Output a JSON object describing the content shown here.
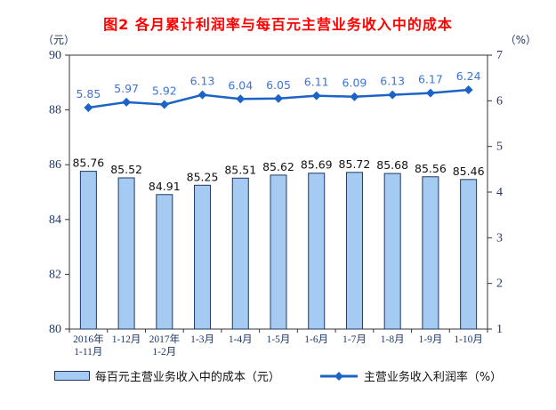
{
  "title": "图2 各月累计利润率与每百元主营业务收入中的成本",
  "left_axis_unit": "（元）",
  "right_axis_unit": "（%）",
  "colors": {
    "title": "#ff0000",
    "bar_fill": "#a6cbf3",
    "bar_border": "#1f3864",
    "line": "#1c63c8",
    "line_label": "#3e74d8",
    "bar_label": "#111111",
    "axis_text": "#1f3864",
    "axis_line": "#333333"
  },
  "chart_data": {
    "type": "bar+line combo, dual axis",
    "title": "图2 各月累计利润率与每百元主营业务收入中的成本",
    "categories": [
      [
        "2016年",
        "1-11月"
      ],
      [
        "1-12月"
      ],
      [
        "2017年",
        "1-2月"
      ],
      [
        "1-3月"
      ],
      [
        "1-4月"
      ],
      [
        "1-5月"
      ],
      [
        "1-6月"
      ],
      [
        "1-7月"
      ],
      [
        "1-8月"
      ],
      [
        "1-9月"
      ],
      [
        "1-10月"
      ]
    ],
    "series": [
      {
        "name": "每百元主营业务收入中的成本（元）",
        "type": "bar",
        "axis": "left",
        "values": [
          85.76,
          85.52,
          84.91,
          85.25,
          85.51,
          85.62,
          85.69,
          85.72,
          85.68,
          85.56,
          85.46
        ]
      },
      {
        "name": "主营业务收入利润率（%）",
        "type": "line",
        "axis": "right",
        "values": [
          5.85,
          5.97,
          5.92,
          6.13,
          6.04,
          6.05,
          6.11,
          6.09,
          6.13,
          6.17,
          6.24
        ]
      }
    ],
    "left_axis": {
      "unit": "（元）",
      "min": 80,
      "max": 90,
      "step": 2,
      "ticks": [
        90,
        88,
        86,
        84,
        82,
        80
      ]
    },
    "right_axis": {
      "unit": "（%）",
      "min": 1,
      "max": 7,
      "step": 1,
      "ticks": [
        7,
        6,
        5,
        4,
        3,
        2,
        1
      ]
    },
    "grid": false,
    "legend_position": "bottom",
    "data_labels": true
  }
}
